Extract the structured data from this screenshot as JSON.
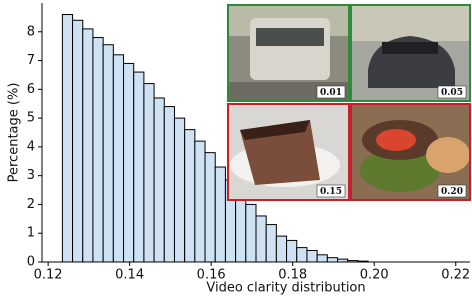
{
  "chart_data": {
    "type": "histogram",
    "xlabel": "Video clarity distribution",
    "ylabel": "Percentage (%)",
    "bins": [
      0.1235,
      0.126,
      0.1285,
      0.131,
      0.1335,
      0.136,
      0.1385,
      0.141,
      0.1435,
      0.146,
      0.1485,
      0.151,
      0.1535,
      0.156,
      0.1585,
      0.161,
      0.1635,
      0.166,
      0.1685,
      0.171,
      0.1735,
      0.176,
      0.1785,
      0.181,
      0.1835,
      0.186,
      0.1885,
      0.191,
      0.1935,
      0.196,
      0.1985
    ],
    "values": [
      8.6,
      8.4,
      8.1,
      7.8,
      7.55,
      7.2,
      6.9,
      6.6,
      6.2,
      5.7,
      5.4,
      5.0,
      4.6,
      4.2,
      3.8,
      3.3,
      2.85,
      2.5,
      2.0,
      1.6,
      1.3,
      0.9,
      0.75,
      0.5,
      0.4,
      0.25,
      0.15,
      0.1,
      0.05,
      0.03
    ],
    "color": "#cfe2f3",
    "edgecolor": "#000000",
    "xlim": [
      0.1185,
      0.2235
    ],
    "ylim": [
      0,
      9
    ],
    "xticks": [
      0.12,
      0.14,
      0.16,
      0.18,
      {
        "value": 0.2,
        "label": "0.20"
      },
      0.22
    ],
    "yticks": [
      0,
      1,
      2,
      3,
      4,
      5,
      6,
      7,
      8
    ],
    "insets": [
      {
        "label": "0.01",
        "border": "#2e8b3a"
      },
      {
        "label": "0.05",
        "border": "#2e8b3a"
      },
      {
        "label": "0.15",
        "border": "#c8202a"
      },
      {
        "label": "0.20",
        "border": "#c8202a"
      }
    ]
  }
}
